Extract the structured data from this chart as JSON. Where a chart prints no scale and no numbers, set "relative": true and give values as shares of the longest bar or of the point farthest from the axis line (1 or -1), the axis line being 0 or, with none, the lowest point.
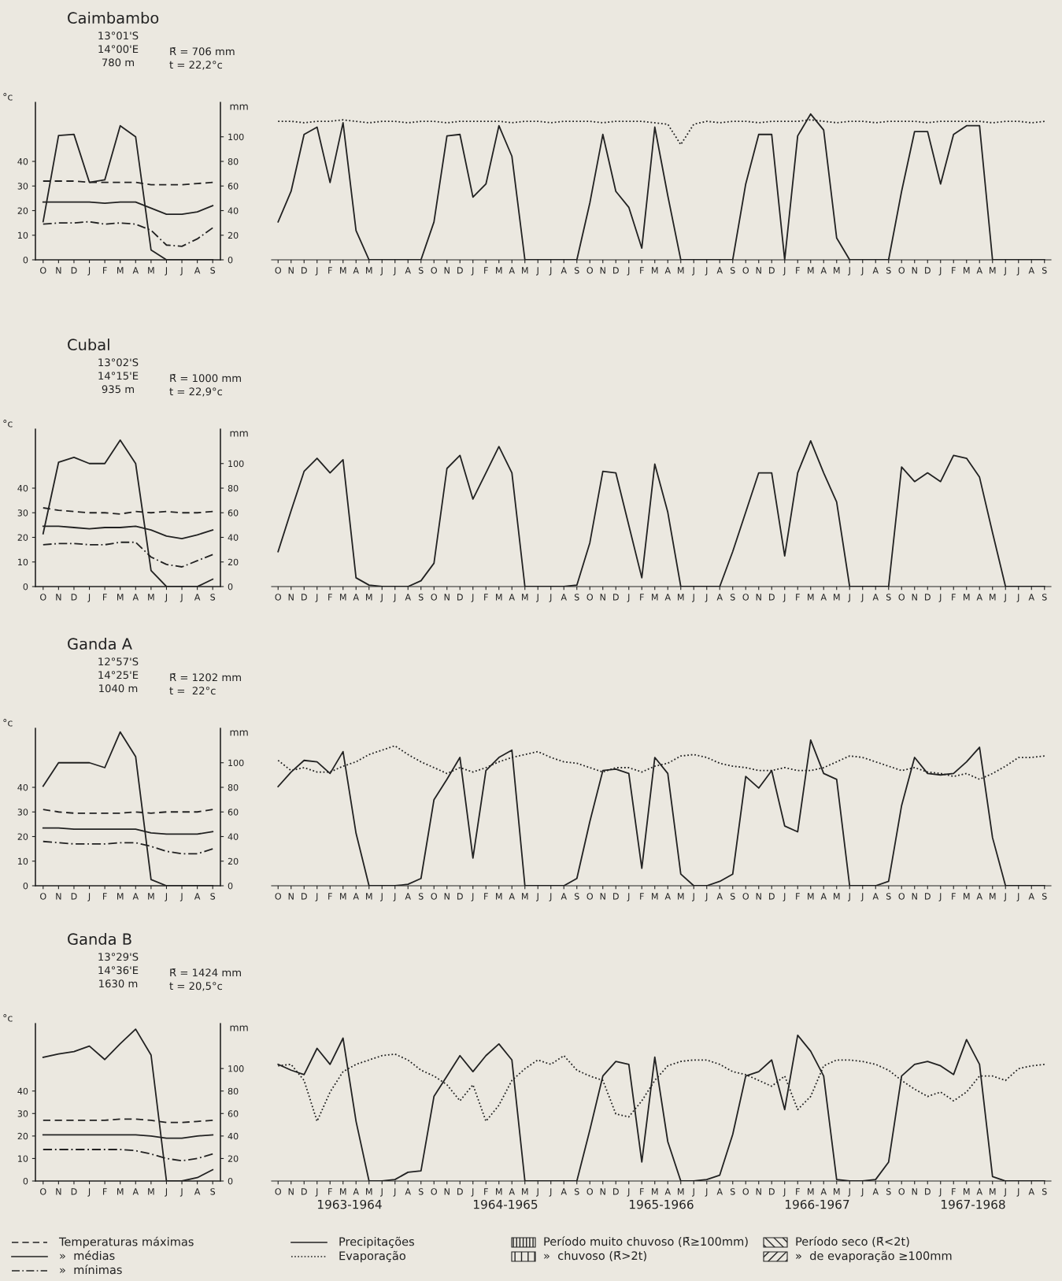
{
  "chart_data": [
    {
      "type": "line",
      "title": "Caimbambo",
      "annotations": [
        "13°01'S",
        "14°00'E",
        "780 m",
        "R̄ = 706 mm",
        "t = 22,2°c"
      ],
      "ylabel": "°c",
      "y2label": "mm",
      "categories": [
        "O",
        "N",
        "D",
        "J",
        "F",
        "M",
        "A",
        "M",
        "J",
        "J",
        "A",
        "S"
      ],
      "ylim": [
        0,
        64
      ],
      "yticks": [
        0,
        10,
        20,
        30,
        40
      ],
      "y2lim": [
        0,
        128
      ],
      "y2ticks": [
        0,
        20,
        40,
        60,
        80,
        100
      ],
      "series": [
        {
          "color": "#222222",
          "line_style": "dashed",
          "values": [
            32,
            32,
            32,
            31.5,
            31.5,
            31.5,
            31.5,
            30.5,
            30.5,
            30.5,
            31,
            31.5
          ]
        },
        {
          "color": "#222222",
          "line_style": "solid",
          "values": [
            23.5,
            23.5,
            23.5,
            23.5,
            23,
            23.5,
            23.5,
            21,
            18.5,
            18.5,
            19.5,
            22
          ]
        },
        {
          "color": "#222222",
          "line_style": "dashdot",
          "values": [
            14.5,
            15,
            15,
            15.5,
            14.5,
            15,
            14.5,
            12,
            6,
            5.5,
            8.5,
            13
          ]
        },
        {
          "color": "#222222",
          "line_style": "solid",
          "axis": "y2",
          "values": [
            31,
            101,
            102,
            63,
            65,
            109,
            100,
            8,
            0,
            0,
            0,
            0
          ]
        }
      ]
    },
    {
      "type": "line",
      "relative": true,
      "tick_labels": "x",
      "categories": [
        "O",
        "N",
        "D",
        "J",
        "F",
        "M",
        "A",
        "M",
        "J",
        "J",
        "A",
        "S",
        "O",
        "N",
        "D",
        "J",
        "F",
        "M",
        "A",
        "M",
        "J",
        "J",
        "A",
        "S",
        "O",
        "N",
        "D",
        "J",
        "F",
        "M",
        "A",
        "M",
        "J",
        "J",
        "A",
        "S",
        "O",
        "N",
        "D",
        "J",
        "F",
        "M",
        "A",
        "M",
        "J",
        "J",
        "A",
        "S",
        "O",
        "N",
        "D",
        "J",
        "F",
        "M",
        "A",
        "M",
        "J",
        "J",
        "A",
        "S"
      ],
      "series": [
        {
          "color": "#222222",
          "line_style": "solid",
          "values": [
            0.26,
            0.47,
            0.86,
            0.91,
            0.53,
            0.94,
            0.2,
            0,
            0,
            0,
            0,
            0,
            0.26,
            0.85,
            0.86,
            0.43,
            0.52,
            0.92,
            0.71,
            0,
            0,
            0,
            0,
            0,
            0.39,
            0.86,
            0.47,
            0.36,
            0.08,
            0.91,
            0.44,
            0,
            0,
            0,
            0,
            0,
            0.52,
            0.86,
            0.86,
            0,
            0.85,
            1,
            0.89,
            0.15,
            0,
            0,
            0,
            0,
            0.47,
            0.88,
            0.88,
            0.52,
            0.86,
            0.92,
            0.92,
            0,
            0,
            0,
            0,
            0
          ]
        },
        {
          "color": "#222222",
          "line_style": "dotted",
          "values": [
            0.95,
            0.95,
            0.94,
            0.95,
            0.95,
            0.96,
            0.95,
            0.94,
            0.95,
            0.95,
            0.94,
            0.95,
            0.95,
            0.94,
            0.95,
            0.95,
            0.95,
            0.95,
            0.94,
            0.95,
            0.95,
            0.94,
            0.95,
            0.95,
            0.95,
            0.94,
            0.95,
            0.95,
            0.95,
            0.94,
            0.93,
            0.79,
            0.93,
            0.95,
            0.94,
            0.95,
            0.95,
            0.94,
            0.95,
            0.95,
            0.95,
            0.96,
            0.95,
            0.94,
            0.95,
            0.95,
            0.94,
            0.95,
            0.95,
            0.95,
            0.94,
            0.95,
            0.95,
            0.95,
            0.95,
            0.94,
            0.95,
            0.95,
            0.94,
            0.95
          ]
        }
      ]
    },
    {
      "type": "line",
      "title": "Cubal",
      "annotations": [
        "13°02'S",
        "14°15'E",
        "935 m",
        "R̄ = 1000 mm",
        "t = 22,9°c"
      ],
      "ylabel": "°c",
      "y2label": "mm",
      "categories": [
        "O",
        "N",
        "D",
        "J",
        "F",
        "M",
        "A",
        "M",
        "J",
        "J",
        "A",
        "S"
      ],
      "ylim": [
        0,
        64
      ],
      "yticks": [
        0,
        10,
        20,
        30,
        40
      ],
      "y2lim": [
        0,
        128
      ],
      "y2ticks": [
        0,
        20,
        40,
        60,
        80,
        100
      ],
      "series": [
        {
          "color": "#222222",
          "line_style": "dashed",
          "values": [
            32,
            31,
            30.5,
            30,
            30,
            29.5,
            30.5,
            30,
            30.5,
            30,
            30,
            30.5
          ]
        },
        {
          "color": "#222222",
          "line_style": "solid",
          "values": [
            24.5,
            24.5,
            24,
            23.5,
            24,
            24,
            24.5,
            23,
            20.5,
            19.5,
            21,
            23
          ]
        },
        {
          "color": "#222222",
          "line_style": "dashdot",
          "values": [
            17,
            17.5,
            17.5,
            17,
            17,
            18,
            18,
            12,
            9,
            8,
            10.5,
            13
          ]
        },
        {
          "color": "#222222",
          "line_style": "solid",
          "axis": "y2",
          "values": [
            43,
            101,
            105,
            100,
            100,
            119,
            100,
            13,
            0,
            0,
            0,
            6
          ]
        }
      ]
    },
    {
      "type": "line",
      "relative": true,
      "tick_labels": "x",
      "categories": [
        "O",
        "N",
        "D",
        "J",
        "F",
        "M",
        "A",
        "M",
        "J",
        "J",
        "A",
        "S",
        "O",
        "N",
        "D",
        "J",
        "F",
        "M",
        "A",
        "M",
        "J",
        "J",
        "A",
        "S",
        "O",
        "N",
        "D",
        "J",
        "F",
        "M",
        "A",
        "M",
        "J",
        "J",
        "A",
        "S",
        "O",
        "N",
        "D",
        "J",
        "F",
        "M",
        "A",
        "M",
        "J",
        "J",
        "A",
        "S",
        "O",
        "N",
        "D",
        "J",
        "F",
        "M",
        "A",
        "M",
        "J",
        "J",
        "A",
        "S"
      ],
      "series": [
        {
          "color": "#222222",
          "line_style": "solid",
          "values": [
            0.24,
            0.52,
            0.79,
            0.88,
            0.78,
            0.87,
            0.06,
            0.01,
            0,
            0,
            0,
            0.04,
            0.16,
            0.81,
            0.9,
            0.6,
            0.78,
            0.96,
            0.78,
            0,
            0,
            0,
            0,
            0.01,
            0.3,
            0.79,
            0.78,
            0.42,
            0.06,
            0.84,
            0.51,
            0,
            0,
            0,
            0,
            0.24,
            0.51,
            0.78,
            0.78,
            0.21,
            0.78,
            1,
            0.78,
            0.58,
            0,
            0,
            0,
            0,
            0.82,
            0.72,
            0.78,
            0.72,
            0.9,
            0.88,
            0.75,
            0.37,
            0,
            0,
            0,
            0
          ]
        }
      ]
    },
    {
      "type": "line",
      "title": "Ganda A",
      "annotations": [
        "12°57'S",
        "14°25'E",
        "1040 m",
        "R̄ = 1202 mm",
        "t =  22°c"
      ],
      "ylabel": "°c",
      "y2label": "mm",
      "categories": [
        "O",
        "N",
        "D",
        "J",
        "F",
        "M",
        "A",
        "M",
        "J",
        "J",
        "A",
        "S"
      ],
      "ylim": [
        0,
        64
      ],
      "yticks": [
        0,
        10,
        20,
        30,
        40
      ],
      "y2lim": [
        0,
        128
      ],
      "y2ticks": [
        0,
        20,
        40,
        60,
        80,
        100
      ],
      "series": [
        {
          "color": "#222222",
          "line_style": "dashed",
          "values": [
            31,
            30,
            29.5,
            29.5,
            29.5,
            29.5,
            30,
            29.5,
            30,
            30,
            30,
            31
          ]
        },
        {
          "color": "#222222",
          "line_style": "solid",
          "values": [
            23.5,
            23.5,
            23,
            23,
            23,
            23,
            23,
            21.5,
            21,
            21,
            21,
            22
          ]
        },
        {
          "color": "#222222",
          "line_style": "dashdot",
          "values": [
            18,
            17.5,
            17,
            17,
            17,
            17.5,
            17.5,
            16,
            14,
            13,
            13,
            15
          ]
        },
        {
          "color": "#222222",
          "line_style": "solid",
          "axis": "y2",
          "values": [
            81,
            100,
            100,
            100,
            96,
            125,
            105,
            5,
            0,
            0,
            0,
            0
          ]
        }
      ]
    },
    {
      "type": "line",
      "relative": true,
      "tick_labels": "x",
      "categories": [
        "O",
        "N",
        "D",
        "J",
        "F",
        "M",
        "A",
        "M",
        "J",
        "J",
        "A",
        "S",
        "O",
        "N",
        "D",
        "J",
        "F",
        "M",
        "A",
        "M",
        "J",
        "J",
        "A",
        "S",
        "O",
        "N",
        "D",
        "J",
        "F",
        "M",
        "A",
        "M",
        "J",
        "J",
        "A",
        "S",
        "O",
        "N",
        "D",
        "J",
        "F",
        "M",
        "A",
        "M",
        "J",
        "J",
        "A",
        "S",
        "O",
        "N",
        "D",
        "J",
        "F",
        "M",
        "A",
        "M",
        "J",
        "J",
        "A",
        "S"
      ],
      "series": [
        {
          "color": "#222222",
          "line_style": "solid",
          "values": [
            0.68,
            0.78,
            0.86,
            0.85,
            0.77,
            0.92,
            0.36,
            0,
            0,
            0,
            0.01,
            0.05,
            0.59,
            0.73,
            0.88,
            0.19,
            0.79,
            0.88,
            0.93,
            0,
            0,
            0,
            0,
            0.05,
            0.44,
            0.79,
            0.8,
            0.77,
            0.12,
            0.88,
            0.77,
            0.08,
            0,
            0,
            0.03,
            0.08,
            0.75,
            0.67,
            0.79,
            0.41,
            0.37,
            1,
            0.77,
            0.73,
            0,
            0,
            0,
            0.03,
            0.55,
            0.88,
            0.77,
            0.76,
            0.77,
            0.85,
            0.95,
            0.33,
            0,
            0,
            0,
            0
          ]
        },
        {
          "color": "#222222",
          "line_style": "dotted",
          "values": [
            0.86,
            0.79,
            0.81,
            0.78,
            0.78,
            0.82,
            0.85,
            0.9,
            0.93,
            0.96,
            0.9,
            0.85,
            0.81,
            0.77,
            0.81,
            0.78,
            0.81,
            0.85,
            0.88,
            0.9,
            0.92,
            0.88,
            0.85,
            0.84,
            0.81,
            0.78,
            0.81,
            0.81,
            0.78,
            0.82,
            0.84,
            0.89,
            0.9,
            0.88,
            0.84,
            0.82,
            0.81,
            0.79,
            0.79,
            0.81,
            0.79,
            0.79,
            0.81,
            0.85,
            0.89,
            0.88,
            0.85,
            0.82,
            0.79,
            0.81,
            0.78,
            0.77,
            0.75,
            0.77,
            0.73,
            0.77,
            0.82,
            0.88,
            0.88,
            0.89
          ]
        }
      ]
    },
    {
      "type": "line",
      "title": "Ganda B",
      "annotations": [
        "13°29'S",
        "14°36'E",
        "1630 m",
        "R̄ = 1424 mm",
        "t = 20,5°c"
      ],
      "ylabel": "°c",
      "y2label": "mm",
      "categories": [
        "O",
        "N",
        "D",
        "J",
        "F",
        "M",
        "A",
        "M",
        "J",
        "J",
        "A",
        "S"
      ],
      "ylim": [
        0,
        70
      ],
      "yticks": [
        0,
        10,
        20,
        30,
        40
      ],
      "y2lim": [
        0,
        140
      ],
      "y2ticks": [
        0,
        20,
        40,
        60,
        80,
        100
      ],
      "series": [
        {
          "color": "#222222",
          "line_style": "dashed",
          "values": [
            27,
            27,
            27,
            27,
            27,
            27.5,
            27.5,
            27,
            26,
            26,
            26.5,
            27
          ]
        },
        {
          "color": "#222222",
          "line_style": "solid",
          "values": [
            20.5,
            20.5,
            20.5,
            20.5,
            20.5,
            20.5,
            20.5,
            20,
            19,
            19,
            20,
            20.5
          ]
        },
        {
          "color": "#222222",
          "line_style": "dashdot",
          "values": [
            14,
            14,
            14,
            14,
            14,
            14,
            13.5,
            12,
            10,
            9,
            10,
            12
          ]
        },
        {
          "color": "#222222",
          "line_style": "solid",
          "axis": "y2",
          "values": [
            110,
            113,
            115,
            120,
            108,
            122,
            135,
            112,
            0,
            0,
            3,
            10
          ]
        }
      ]
    },
    {
      "type": "line",
      "relative": true,
      "tick_labels": "x",
      "annotations": [
        "1963-1964",
        "1964-1965",
        "1965-1966",
        "1966-1967",
        "1967-1968"
      ],
      "categories": [
        "O",
        "N",
        "D",
        "J",
        "F",
        "M",
        "A",
        "M",
        "J",
        "J",
        "A",
        "S",
        "O",
        "N",
        "D",
        "J",
        "F",
        "M",
        "A",
        "M",
        "J",
        "J",
        "A",
        "S",
        "O",
        "N",
        "D",
        "J",
        "F",
        "M",
        "A",
        "M",
        "J",
        "J",
        "A",
        "S",
        "O",
        "N",
        "D",
        "J",
        "F",
        "M",
        "A",
        "M",
        "J",
        "J",
        "A",
        "S",
        "O",
        "N",
        "D",
        "J",
        "F",
        "M",
        "A",
        "M",
        "J",
        "J",
        "A",
        "S"
      ],
      "series": [
        {
          "color": "#222222",
          "line_style": "solid",
          "values": [
            0.8,
            0.76,
            0.73,
            0.91,
            0.8,
            0.98,
            0.41,
            0,
            0,
            0.01,
            0.06,
            0.07,
            0.58,
            0.72,
            0.86,
            0.75,
            0.86,
            0.94,
            0.83,
            0,
            0,
            0,
            0,
            0,
            0.35,
            0.72,
            0.82,
            0.8,
            0.13,
            0.85,
            0.27,
            0,
            0,
            0.01,
            0.04,
            0.32,
            0.72,
            0.75,
            0.83,
            0.49,
            1,
            0.89,
            0.72,
            0.01,
            0,
            0,
            0.01,
            0.13,
            0.72,
            0.8,
            0.82,
            0.79,
            0.73,
            0.97,
            0.8,
            0.03,
            0,
            0,
            0,
            0
          ]
        },
        {
          "color": "#222222",
          "line_style": "dotted",
          "values": [
            0.79,
            0.8,
            0.69,
            0.41,
            0.61,
            0.75,
            0.8,
            0.83,
            0.86,
            0.87,
            0.83,
            0.76,
            0.72,
            0.66,
            0.55,
            0.66,
            0.41,
            0.52,
            0.69,
            0.77,
            0.83,
            0.8,
            0.86,
            0.76,
            0.72,
            0.69,
            0.46,
            0.44,
            0.55,
            0.69,
            0.79,
            0.82,
            0.83,
            0.83,
            0.8,
            0.75,
            0.73,
            0.69,
            0.65,
            0.72,
            0.49,
            0.58,
            0.79,
            0.83,
            0.83,
            0.82,
            0.8,
            0.76,
            0.69,
            0.63,
            0.58,
            0.61,
            0.55,
            0.61,
            0.72,
            0.72,
            0.69,
            0.77,
            0.79,
            0.8
          ]
        }
      ]
    },
    {
      "type": "other",
      "annotations": [
        "Temperaturas máximas",
        "»  médias",
        "»  mínimas",
        "Precipitações",
        "Evaporação",
        "Período muito chuvoso (R̄≥100mm)",
        "»  chuvoso (R̄>2t)",
        "Período seco (R̄<2t)",
        "»  de evaporação ≥100mm"
      ]
    }
  ]
}
